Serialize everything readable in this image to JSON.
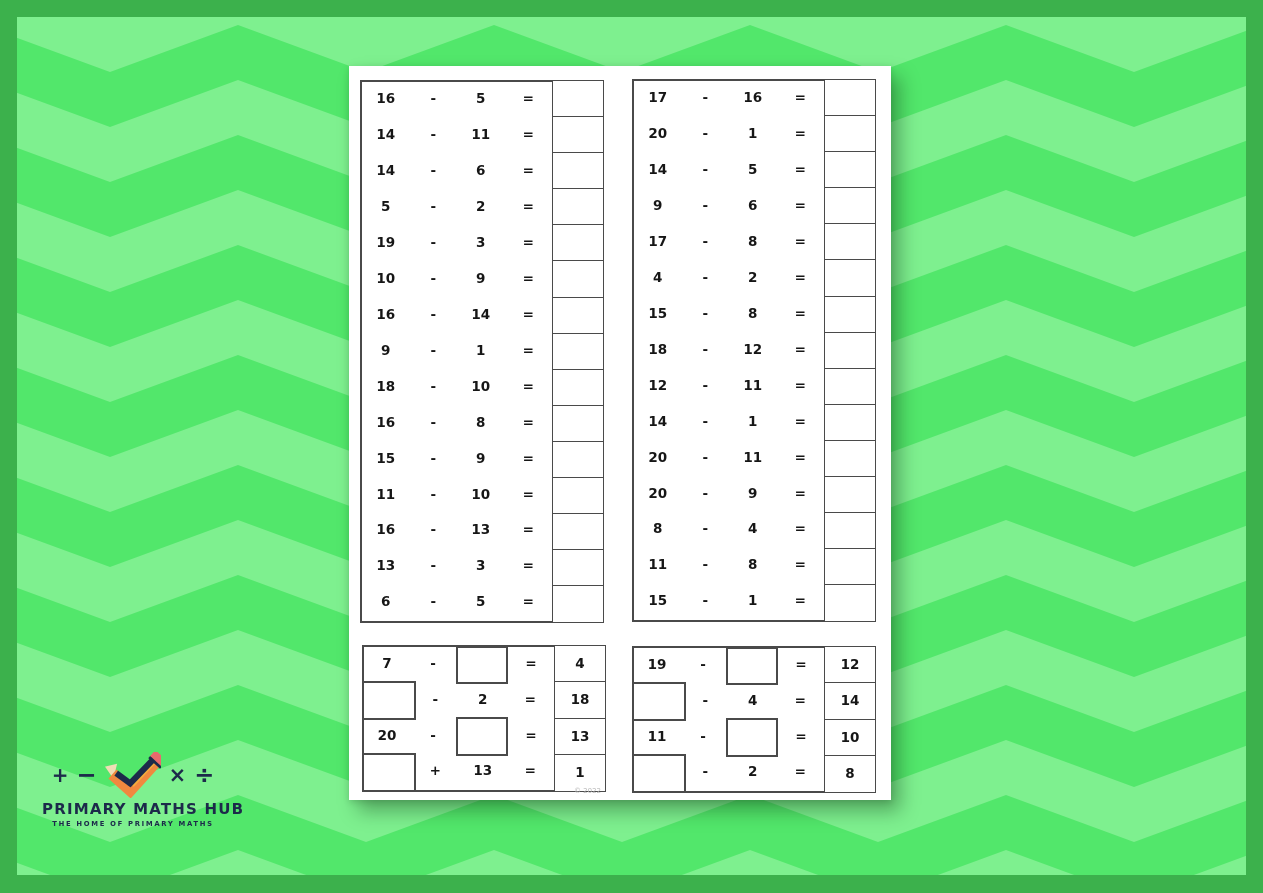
{
  "colors": {
    "frame": "#3CB14C",
    "chevron_base": "#52E76B",
    "chevron_stripe": "#7EF08F",
    "paper": "#FFFFFF",
    "border": "#4A4A4A",
    "text": "#161616",
    "watermark": "#B9B9B9",
    "logo_navy": "#1C2A4A",
    "pencil_orange": "#F0883F",
    "pencil_yellow": "#F3AC3C",
    "pencil_cream": "#F0DDB5",
    "eraser_red": "#E96A6C"
  },
  "worksheet": {
    "copyright": "© 2022",
    "top_left": {
      "rows": [
        {
          "a": "16",
          "op": "-",
          "b": "5",
          "eq": "="
        },
        {
          "a": "14",
          "op": "-",
          "b": "11",
          "eq": "="
        },
        {
          "a": "14",
          "op": "-",
          "b": "6",
          "eq": "="
        },
        {
          "a": "5",
          "op": "-",
          "b": "2",
          "eq": "="
        },
        {
          "a": "19",
          "op": "-",
          "b": "3",
          "eq": "="
        },
        {
          "a": "10",
          "op": "-",
          "b": "9",
          "eq": "="
        },
        {
          "a": "16",
          "op": "-",
          "b": "14",
          "eq": "="
        },
        {
          "a": "9",
          "op": "-",
          "b": "1",
          "eq": "="
        },
        {
          "a": "18",
          "op": "-",
          "b": "10",
          "eq": "="
        },
        {
          "a": "16",
          "op": "-",
          "b": "8",
          "eq": "="
        },
        {
          "a": "15",
          "op": "-",
          "b": "9",
          "eq": "="
        },
        {
          "a": "11",
          "op": "-",
          "b": "10",
          "eq": "="
        },
        {
          "a": "16",
          "op": "-",
          "b": "13",
          "eq": "="
        },
        {
          "a": "13",
          "op": "-",
          "b": "3",
          "eq": "="
        },
        {
          "a": "6",
          "op": "-",
          "b": "5",
          "eq": "="
        }
      ]
    },
    "top_right": {
      "rows": [
        {
          "a": "17",
          "op": "-",
          "b": "16",
          "eq": "="
        },
        {
          "a": "20",
          "op": "-",
          "b": "1",
          "eq": "="
        },
        {
          "a": "14",
          "op": "-",
          "b": "5",
          "eq": "="
        },
        {
          "a": "9",
          "op": "-",
          "b": "6",
          "eq": "="
        },
        {
          "a": "17",
          "op": "-",
          "b": "8",
          "eq": "="
        },
        {
          "a": "4",
          "op": "-",
          "b": "2",
          "eq": "="
        },
        {
          "a": "15",
          "op": "-",
          "b": "8",
          "eq": "="
        },
        {
          "a": "18",
          "op": "-",
          "b": "12",
          "eq": "="
        },
        {
          "a": "12",
          "op": "-",
          "b": "11",
          "eq": "="
        },
        {
          "a": "14",
          "op": "-",
          "b": "1",
          "eq": "="
        },
        {
          "a": "20",
          "op": "-",
          "b": "11",
          "eq": "="
        },
        {
          "a": "20",
          "op": "-",
          "b": "9",
          "eq": "="
        },
        {
          "a": "8",
          "op": "-",
          "b": "4",
          "eq": "="
        },
        {
          "a": "11",
          "op": "-",
          "b": "8",
          "eq": "="
        },
        {
          "a": "15",
          "op": "-",
          "b": "1",
          "eq": "="
        }
      ]
    },
    "bottom_left": {
      "rows": [
        {
          "a": "7",
          "a_box": false,
          "op": "-",
          "b": "",
          "b_box": true,
          "eq": "=",
          "ans": "4"
        },
        {
          "a": "",
          "a_box": true,
          "op": "-",
          "b": "2",
          "b_box": false,
          "eq": "=",
          "ans": "18"
        },
        {
          "a": "20",
          "a_box": false,
          "op": "-",
          "b": "",
          "b_box": true,
          "eq": "=",
          "ans": "13"
        },
        {
          "a": "",
          "a_box": true,
          "op": "+",
          "b": "13",
          "b_box": false,
          "eq": "=",
          "ans": "1"
        }
      ]
    },
    "bottom_right": {
      "rows": [
        {
          "a": "19",
          "a_box": false,
          "op": "-",
          "b": "",
          "b_box": true,
          "eq": "=",
          "ans": "12"
        },
        {
          "a": "",
          "a_box": true,
          "op": "-",
          "b": "4",
          "b_box": false,
          "eq": "=",
          "ans": "14"
        },
        {
          "a": "11",
          "a_box": false,
          "op": "-",
          "b": "",
          "b_box": true,
          "eq": "=",
          "ans": "10"
        },
        {
          "a": "",
          "a_box": true,
          "op": "-",
          "b": "2",
          "b_box": false,
          "eq": "=",
          "ans": "8"
        }
      ]
    }
  },
  "logo": {
    "symbols": {
      "plus": "+",
      "minus": "−",
      "times": "×",
      "divide": "÷"
    },
    "title": "PRIMARY MATHS HUB",
    "subtitle": "THE HOME OF PRIMARY MATHS"
  }
}
